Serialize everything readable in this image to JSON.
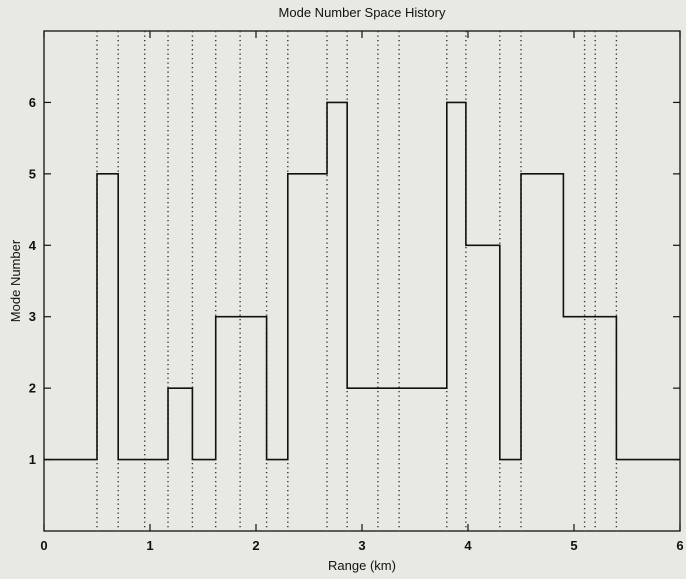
{
  "chart_data": {
    "type": "line",
    "step": true,
    "title": "Mode Number Space History",
    "xlabel": "Range (km)",
    "ylabel": "Mode Number",
    "xlim": [
      0,
      6
    ],
    "ylim": [
      0,
      7
    ],
    "x_ticks": [
      "0",
      "1",
      "2",
      "3",
      "4",
      "5",
      "6"
    ],
    "y_ticks": [
      "1",
      "2",
      "3",
      "4",
      "5",
      "6"
    ],
    "grid": false,
    "segments": [
      {
        "x0": 0.0,
        "x1": 0.5,
        "mode": 1
      },
      {
        "x0": 0.5,
        "x1": 0.7,
        "mode": 5
      },
      {
        "x0": 0.7,
        "x1": 1.17,
        "mode": 1
      },
      {
        "x0": 1.17,
        "x1": 1.4,
        "mode": 2
      },
      {
        "x0": 1.4,
        "x1": 1.62,
        "mode": 1
      },
      {
        "x0": 1.62,
        "x1": 2.1,
        "mode": 3
      },
      {
        "x0": 2.1,
        "x1": 2.3,
        "mode": 1
      },
      {
        "x0": 2.3,
        "x1": 2.67,
        "mode": 5
      },
      {
        "x0": 2.67,
        "x1": 2.86,
        "mode": 6
      },
      {
        "x0": 2.86,
        "x1": 3.8,
        "mode": 2
      },
      {
        "x0": 3.8,
        "x1": 3.98,
        "mode": 6
      },
      {
        "x0": 3.98,
        "x1": 4.3,
        "mode": 4
      },
      {
        "x0": 4.3,
        "x1": 4.5,
        "mode": 1
      },
      {
        "x0": 4.5,
        "x1": 4.9,
        "mode": 5
      },
      {
        "x0": 4.9,
        "x1": 5.4,
        "mode": 3
      },
      {
        "x0": 5.4,
        "x1": 6.0,
        "mode": 1
      }
    ],
    "vertical_markers": [
      0.5,
      0.7,
      0.95,
      1.17,
      1.4,
      1.62,
      1.85,
      2.1,
      2.3,
      2.67,
      2.86,
      3.15,
      3.35,
      3.8,
      3.98,
      4.3,
      4.5,
      5.1,
      5.2,
      5.4
    ],
    "colors": {
      "background": "#e9e9e3",
      "line": "#111111",
      "marker": "#333333"
    }
  }
}
